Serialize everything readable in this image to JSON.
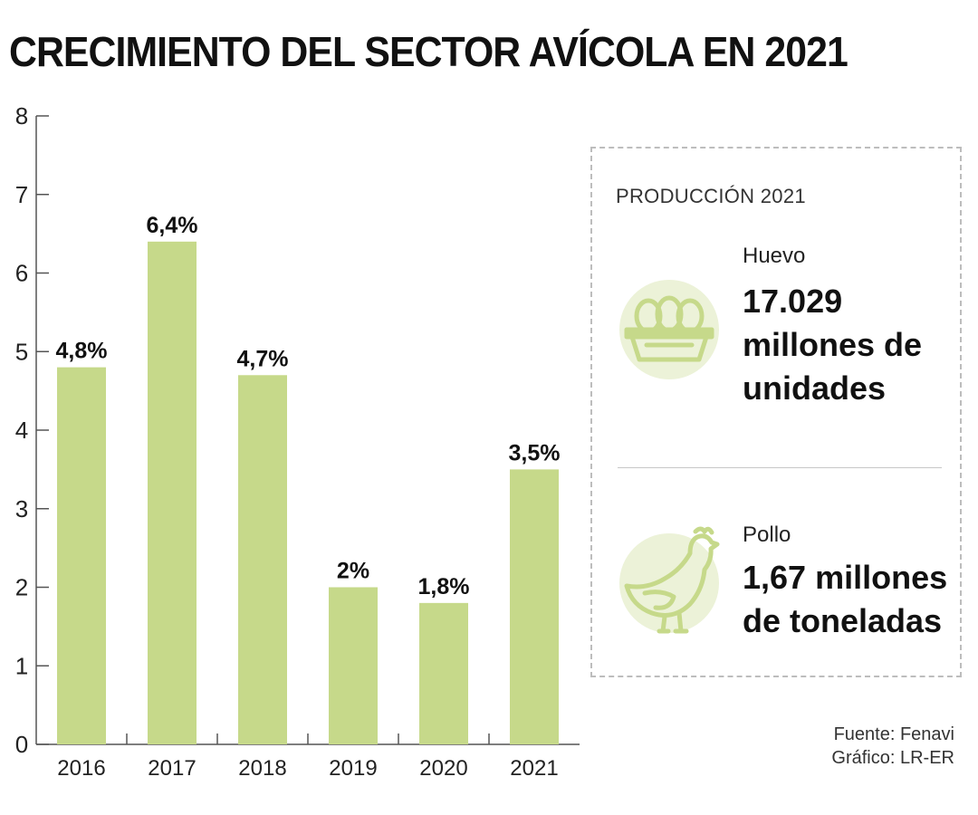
{
  "header": {
    "title": "CRECIMIENTO DEL SECTOR AVÍCOLA EN 2021"
  },
  "chart_data": {
    "type": "bar",
    "categories": [
      "2016",
      "2017",
      "2018",
      "2019",
      "2020",
      "2021"
    ],
    "values": [
      4.8,
      6.4,
      4.7,
      2,
      1.8,
      3.5
    ],
    "value_labels": [
      "4,8%",
      "6,4%",
      "4,7%",
      "2%",
      "1,8%",
      "3,5%"
    ],
    "yticks": [
      "0",
      "1",
      "2",
      "3",
      "4",
      "5",
      "6",
      "7",
      "8"
    ],
    "ylim": [
      0,
      8
    ],
    "title": "CRECIMIENTO DEL SECTOR AVÍCOLA EN 2021",
    "xlabel": "",
    "ylabel": "",
    "grid": false,
    "colors": {
      "bar": "#c6d98a",
      "axis": "#555555"
    }
  },
  "panel": {
    "title": "PRODUCCIÓN 2021",
    "egg": {
      "icon": "egg-carton-icon",
      "label": "Huevo",
      "value": "17.029 millones de unidades"
    },
    "hen": {
      "icon": "hen-icon",
      "label": "Pollo",
      "value": "1,67 millones de toneladas"
    },
    "colors": {
      "icon_fill": "#ecf2d8",
      "icon_stroke": "#c6d98a"
    }
  },
  "footer": {
    "source": "Fuente: Fenavi",
    "credit": "Gráfico: LR-ER"
  }
}
